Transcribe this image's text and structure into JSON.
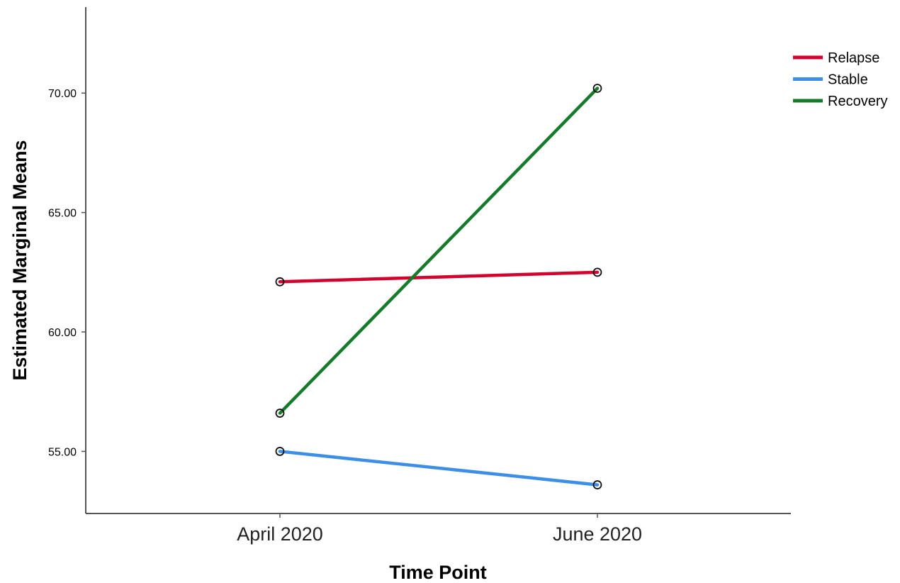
{
  "chart_data": {
    "type": "line",
    "xlabel": "Time Point",
    "ylabel": "Estimated Marginal Means",
    "categories": [
      "April 2020",
      "June 2020"
    ],
    "ylim": [
      52.4,
      73.6
    ],
    "yticks": [
      55,
      60,
      65,
      70
    ],
    "ytick_labels": [
      "55.00",
      "60.00",
      "65.00",
      "70.00"
    ],
    "grid": false,
    "legend_position": "top-right",
    "markers": "open-circle",
    "series": [
      {
        "name": "Relapse",
        "values": [
          62.1,
          62.5
        ],
        "color": "#d2042d"
      },
      {
        "name": "Stable",
        "values": [
          55.0,
          53.6
        ],
        "color": "#3d8ee6"
      },
      {
        "name": "Recovery",
        "values": [
          56.6,
          70.2
        ],
        "color": "#157a2a"
      }
    ]
  }
}
